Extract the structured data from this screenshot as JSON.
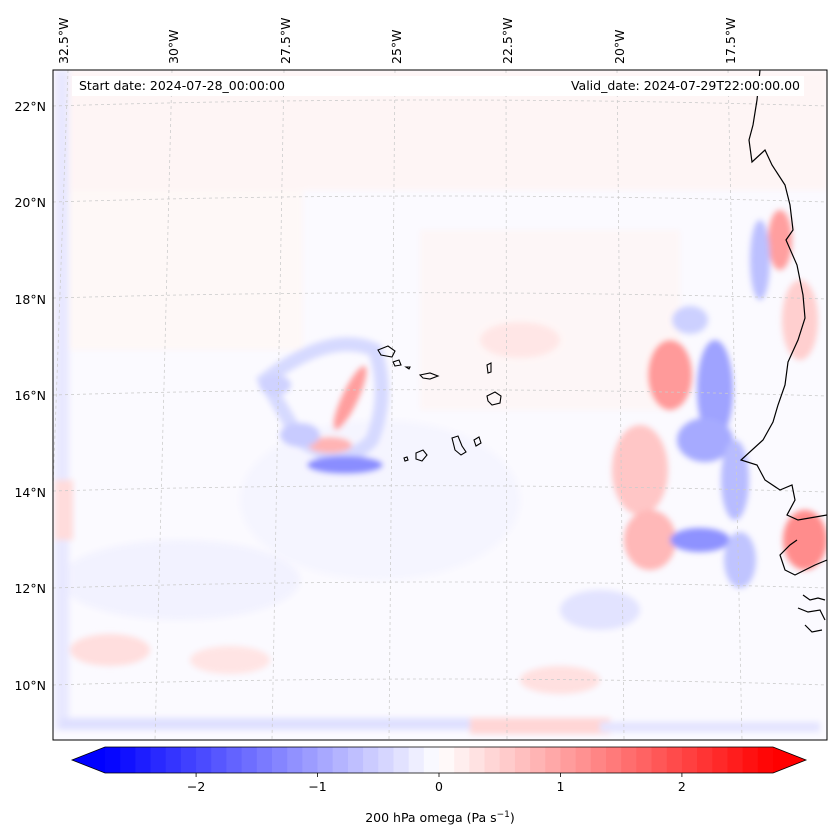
{
  "header": {
    "start_date": "Start date: 2024-07-28_00:00:00",
    "valid_date": "Valid_date: 2024-07-29T22:00:00.00"
  },
  "longitude_labels": [
    "32.5°W",
    "30°W",
    "27.5°W",
    "25°W",
    "22.5°W",
    "20°W",
    "17.5°W"
  ],
  "latitude_labels": [
    "22°N",
    "20°N",
    "18°N",
    "16°N",
    "14°N",
    "12°N",
    "10°N"
  ],
  "colorbar": {
    "label": "200 hPa omega (Pa s",
    "label_superscript": "−1",
    "label_close": ")",
    "ticks": [
      "−2",
      "−1",
      "0",
      "1",
      "2"
    ],
    "range": [
      -2.75,
      2.75
    ],
    "colors": {
      "negative": "#0000ff",
      "zero": "#ffffff",
      "positive": "#ff0000"
    }
  },
  "map": {
    "projection": "Lambert conformal",
    "extent_lon": [
      -33,
      -15
    ],
    "extent_lat": [
      9,
      22.8
    ],
    "variable": "200 hPa omega",
    "gridline_color": "#cccccc",
    "coastline_color": "#000000"
  }
}
